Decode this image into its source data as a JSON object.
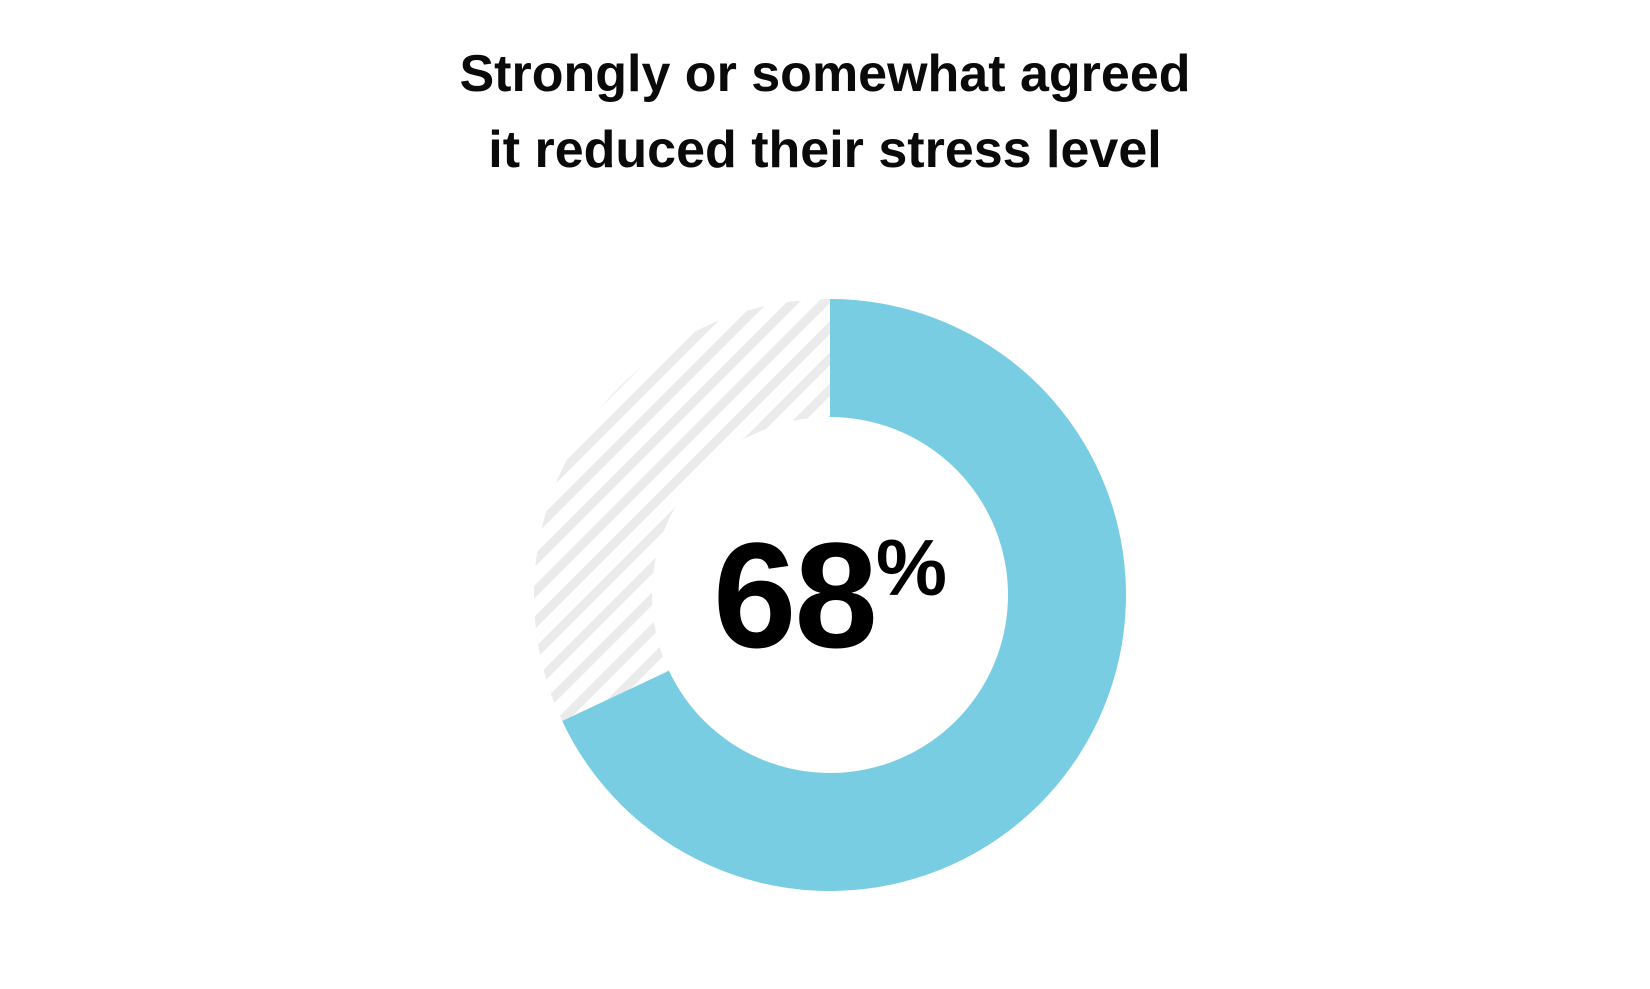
{
  "chart_data": {
    "type": "pie",
    "variant": "donut",
    "title_lines": [
      "Strongly or somewhat agreed",
      "it reduced their stress level"
    ],
    "value": 68,
    "value_label": "68",
    "unit": "%",
    "colors": {
      "filled": "#78CDE3",
      "remaining_stripe": "#EAEAEA",
      "background": "#FFFFFF",
      "text": "#000000"
    }
  }
}
